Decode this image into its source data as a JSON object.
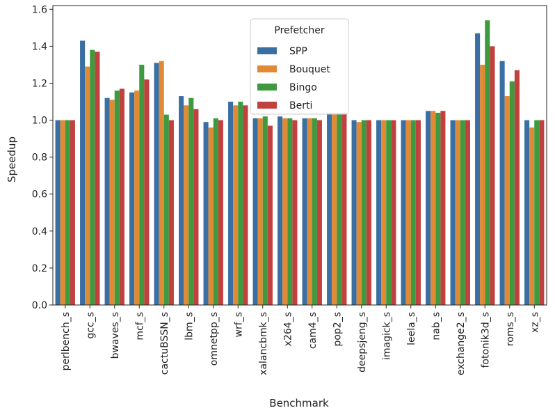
{
  "chart_data": {
    "type": "bar",
    "title": "",
    "xlabel": "Benchmark",
    "ylabel": "Speedup",
    "ylim": [
      0,
      1.62
    ],
    "yticks": [
      "0.0",
      "0.2",
      "0.4",
      "0.6",
      "0.8",
      "1.0",
      "1.2",
      "1.4",
      "1.6"
    ],
    "ytick_values": [
      0,
      0.2,
      0.4,
      0.6,
      0.8,
      1.0,
      1.2,
      1.4,
      1.6
    ],
    "grid": false,
    "legend_title": "Prefetcher",
    "legend_position": "top-center",
    "categories": [
      "perlbench_s",
      "gcc_s",
      "bwaves_s",
      "mcf_s",
      "cactuBSSN_s",
      "lbm_s",
      "omnetpp_s",
      "wrf_s",
      "xalancbmk_s",
      "x264_s",
      "cam4_s",
      "pop2_s",
      "deepsjeng_s",
      "imagick_s",
      "leela_s",
      "nab_s",
      "exchange2_s",
      "fotonik3d_s",
      "roms_s",
      "xz_s"
    ],
    "series": [
      {
        "name": "SPP",
        "color": "#3a6fa3",
        "values": [
          1.0,
          1.43,
          1.12,
          1.15,
          1.31,
          1.13,
          0.99,
          1.1,
          1.01,
          1.02,
          1.01,
          1.04,
          1.0,
          1.0,
          1.0,
          1.05,
          1.0,
          1.47,
          1.32,
          1.0
        ]
      },
      {
        "name": "Bouquet",
        "color": "#e08a35",
        "values": [
          1.0,
          1.29,
          1.11,
          1.16,
          1.32,
          1.08,
          0.96,
          1.08,
          1.01,
          1.01,
          1.01,
          1.04,
          0.99,
          1.0,
          1.0,
          1.05,
          1.0,
          1.3,
          1.13,
          0.96
        ]
      },
      {
        "name": "Bingo",
        "color": "#3f9a3f",
        "values": [
          1.0,
          1.38,
          1.16,
          1.3,
          1.03,
          1.12,
          1.01,
          1.1,
          1.02,
          1.01,
          1.01,
          1.04,
          1.0,
          1.0,
          1.0,
          1.04,
          1.0,
          1.54,
          1.21,
          1.0
        ]
      },
      {
        "name": "Berti",
        "color": "#c1413e",
        "values": [
          1.0,
          1.37,
          1.17,
          1.22,
          1.0,
          1.06,
          1.0,
          1.08,
          0.97,
          1.0,
          1.0,
          1.04,
          1.0,
          1.0,
          1.0,
          1.05,
          1.0,
          1.4,
          1.27,
          1.0
        ]
      }
    ]
  }
}
